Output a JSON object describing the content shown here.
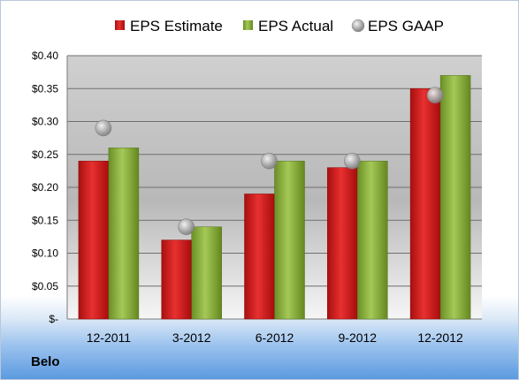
{
  "company": "Belo",
  "chart_data": {
    "type": "bar",
    "categories": [
      "12-2011",
      "3-2012",
      "6-2012",
      "9-2012",
      "12-2012"
    ],
    "series": [
      {
        "name": "EPS Estimate",
        "kind": "bar",
        "color": "#d81e1e",
        "values": [
          0.24,
          0.12,
          0.19,
          0.23,
          0.35
        ]
      },
      {
        "name": "EPS Actual",
        "kind": "bar",
        "color": "#8cb33b",
        "values": [
          0.26,
          0.14,
          0.24,
          0.24,
          0.37
        ]
      },
      {
        "name": "EPS GAAP",
        "kind": "scatter",
        "color": "#b8b8b8",
        "values": [
          0.29,
          0.14,
          0.24,
          0.24,
          0.34
        ]
      }
    ],
    "yticks": [
      "$-",
      "$0.05",
      "$0.10",
      "$0.15",
      "$0.20",
      "$0.25",
      "$0.30",
      "$0.35",
      "$0.40"
    ],
    "ylim": [
      0,
      0.4
    ],
    "grid": true,
    "legend": "top"
  }
}
